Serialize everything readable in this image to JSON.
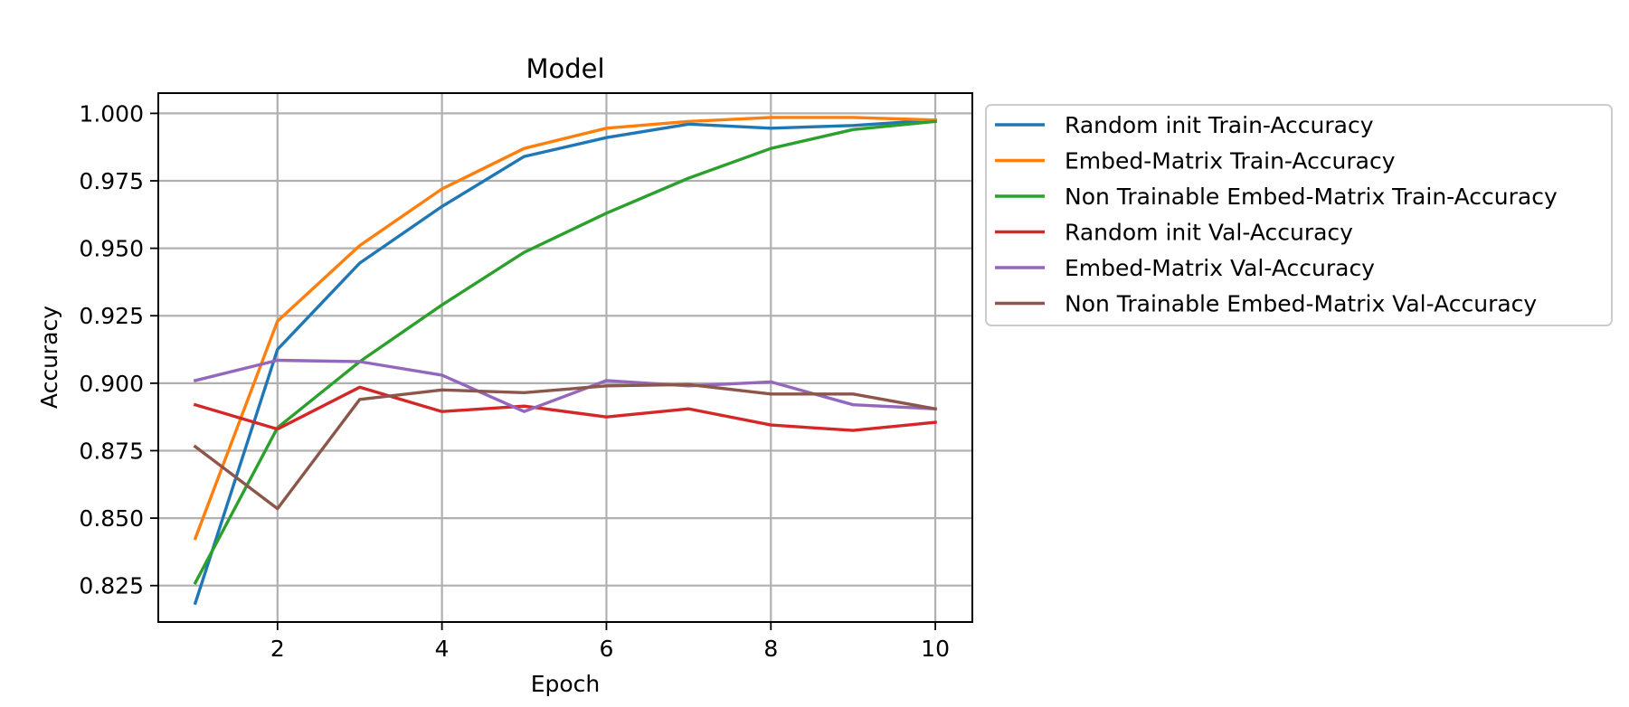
{
  "chart_data": {
    "type": "line",
    "title": "Model",
    "xlabel": "Epoch",
    "ylabel": "Accuracy",
    "xlim": [
      0.55,
      10.45
    ],
    "ylim": [
      0.8115,
      1.0075
    ],
    "grid": true,
    "legend_placement": "outside-right",
    "x": [
      1,
      2,
      3,
      4,
      5,
      6,
      7,
      8,
      9,
      10
    ],
    "x_ticks": [
      2,
      4,
      6,
      8,
      10
    ],
    "x_tick_labels": [
      "2",
      "4",
      "6",
      "8",
      "10"
    ],
    "y_ticks": [
      0.825,
      0.85,
      0.875,
      0.9,
      0.925,
      0.95,
      0.975,
      1.0
    ],
    "y_tick_labels": [
      "0.825",
      "0.850",
      "0.875",
      "0.900",
      "0.925",
      "0.950",
      "0.975",
      "1.000"
    ],
    "series": [
      {
        "name": "Random init Train-Accuracy",
        "color": "#1f77b4",
        "values": [
          0.8185,
          0.9125,
          0.9445,
          0.9655,
          0.984,
          0.991,
          0.996,
          0.9945,
          0.9955,
          0.9975
        ]
      },
      {
        "name": "Embed-Matrix Train-Accuracy",
        "color": "#ff7f0e",
        "values": [
          0.8425,
          0.923,
          0.951,
          0.972,
          0.987,
          0.9945,
          0.997,
          0.9985,
          0.9985,
          0.9975
        ]
      },
      {
        "name": "Non Trainable Embed-Matrix Train-Accuracy",
        "color": "#2ca02c",
        "values": [
          0.826,
          0.8835,
          0.908,
          0.929,
          0.9485,
          0.963,
          0.976,
          0.987,
          0.994,
          0.997
        ]
      },
      {
        "name": "Random init Val-Accuracy",
        "color": "#d62728",
        "values": [
          0.892,
          0.883,
          0.8985,
          0.8895,
          0.8915,
          0.8875,
          0.8905,
          0.8845,
          0.8825,
          0.8855
        ]
      },
      {
        "name": "Embed-Matrix Val-Accuracy",
        "color": "#9467bd",
        "values": [
          0.901,
          0.9085,
          0.908,
          0.903,
          0.8895,
          0.901,
          0.899,
          0.9005,
          0.892,
          0.8905
        ]
      },
      {
        "name": "Non Trainable Embed-Matrix Val-Accuracy",
        "color": "#8c564b",
        "values": [
          0.8765,
          0.8535,
          0.894,
          0.8975,
          0.8965,
          0.899,
          0.8995,
          0.896,
          0.896,
          0.8905
        ]
      }
    ]
  }
}
